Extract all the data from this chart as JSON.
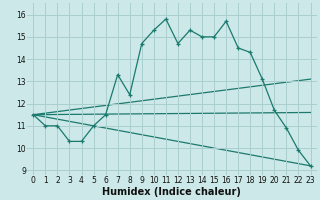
{
  "title": "",
  "xlabel": "Humidex (Indice chaleur)",
  "xlim": [
    -0.5,
    23.5
  ],
  "ylim": [
    8.8,
    16.5
  ],
  "yticks": [
    9,
    10,
    11,
    12,
    13,
    14,
    15,
    16
  ],
  "xticks": [
    0,
    1,
    2,
    3,
    4,
    5,
    6,
    7,
    8,
    9,
    10,
    11,
    12,
    13,
    14,
    15,
    16,
    17,
    18,
    19,
    20,
    21,
    22,
    23
  ],
  "bg_color": "#cce8e8",
  "grid_color": "#aacece",
  "line_color": "#1a7a6e",
  "series1_x": [
    0,
    1,
    2,
    3,
    4,
    5,
    6,
    7,
    8,
    9,
    10,
    11,
    12,
    13,
    14,
    15,
    16,
    17,
    18,
    19,
    20,
    21,
    22,
    23
  ],
  "series1_y": [
    11.5,
    11.0,
    11.0,
    10.3,
    10.3,
    11.0,
    11.5,
    13.3,
    12.4,
    14.7,
    15.3,
    15.8,
    14.7,
    15.3,
    15.0,
    15.0,
    15.7,
    14.5,
    14.3,
    13.1,
    11.7,
    10.9,
    9.9,
    9.2
  ],
  "series2_x": [
    0,
    23
  ],
  "series2_y": [
    11.5,
    13.1
  ],
  "series3_x": [
    0,
    23
  ],
  "series3_y": [
    11.5,
    11.6
  ],
  "series4_x": [
    0,
    23
  ],
  "series4_y": [
    11.5,
    9.2
  ],
  "tick_fontsize": 5.5,
  "xlabel_fontsize": 7.0
}
